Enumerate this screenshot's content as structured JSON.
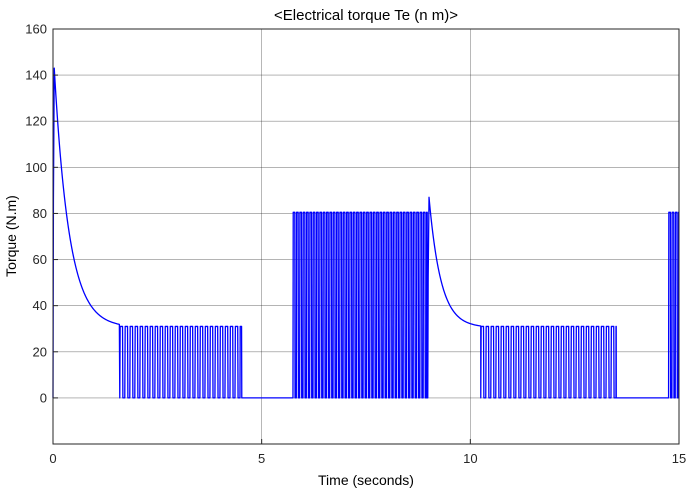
{
  "chart_data": {
    "type": "line",
    "title": "<Electrical torque Te (n m)>",
    "xlabel": "Time (seconds)",
    "ylabel": "Torque (N.m)",
    "xlim": [
      0,
      15
    ],
    "ylim": [
      -20,
      160
    ],
    "xticks": [
      0,
      5,
      10,
      15
    ],
    "yticks": [
      0,
      20,
      40,
      60,
      80,
      100,
      120,
      140,
      160
    ],
    "grid": true,
    "legend": "none",
    "colors": {
      "line": "#0000ff",
      "grid": "#262626",
      "axes": "#262626",
      "background": "#ffffff"
    },
    "series": [
      {
        "segments": [
          {
            "kind": "decay",
            "t0": 0.0,
            "t1": 1.6,
            "peak": 143,
            "final": 30.5
          },
          {
            "kind": "pulses",
            "t0": 1.6,
            "t1": 4.55,
            "high": 31,
            "low": 0,
            "period": 0.12
          },
          {
            "kind": "flat",
            "t0": 4.55,
            "t1": 5.75,
            "value": 0
          },
          {
            "kind": "pulses",
            "t0": 5.75,
            "t1": 8.98,
            "high": 80.5,
            "low": 0,
            "period": 0.08
          },
          {
            "kind": "decay",
            "t0": 8.98,
            "t1": 10.25,
            "peak": 87,
            "final": 30.5
          },
          {
            "kind": "pulses",
            "t0": 10.25,
            "t1": 13.5,
            "high": 31,
            "low": 0,
            "period": 0.12
          },
          {
            "kind": "flat",
            "t0": 13.5,
            "t1": 14.75,
            "value": 0
          },
          {
            "kind": "pulses",
            "t0": 14.75,
            "t1": 15.0,
            "high": 80.5,
            "low": 0,
            "period": 0.08
          }
        ]
      }
    ]
  }
}
